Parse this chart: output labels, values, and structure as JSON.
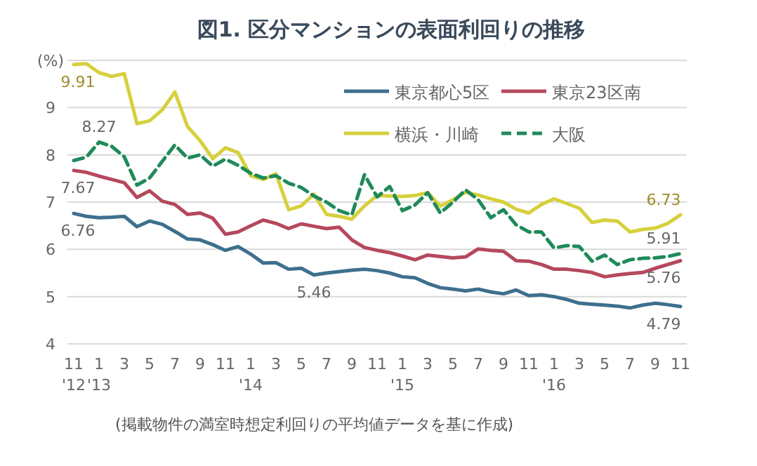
{
  "chart_data": {
    "type": "line",
    "title": "図1. 区分マンションの表面利回りの推移",
    "categories": [
      "11\n'12",
      null,
      "1\n'13",
      null,
      "3",
      null,
      "5",
      null,
      "7",
      null,
      "9",
      null,
      "11",
      null,
      "1\n'14",
      null,
      "3",
      null,
      "5",
      null,
      "7",
      null,
      "9",
      null,
      "11",
      null,
      "1\n'15",
      null,
      "3",
      null,
      "5",
      null,
      "7",
      null,
      "9",
      null,
      "11",
      null,
      "1\n'16",
      null,
      "3",
      null,
      "5",
      null,
      "7",
      null,
      "9",
      null,
      "11"
    ],
    "series": [
      {
        "name": "東京都心5区",
        "color": "#3e6f8e",
        "line_style": "solid",
        "values": [
          6.76,
          6.7,
          6.67,
          6.68,
          6.7,
          6.48,
          6.6,
          6.53,
          6.38,
          6.22,
          6.2,
          6.1,
          5.98,
          6.06,
          5.9,
          5.71,
          5.72,
          5.58,
          5.6,
          5.46,
          5.5,
          5.53,
          5.56,
          5.58,
          5.55,
          5.5,
          5.42,
          5.4,
          5.28,
          5.19,
          5.16,
          5.12,
          5.16,
          5.1,
          5.06,
          5.14,
          5.02,
          5.04,
          5.0,
          4.94,
          4.86,
          4.84,
          4.82,
          4.8,
          4.76,
          4.82,
          4.86,
          4.83,
          4.79
        ],
        "value_labels": [
          "6.76",
          null,
          null,
          null,
          null,
          null,
          null,
          null,
          null,
          null,
          null,
          null,
          null,
          null,
          null,
          null,
          null,
          null,
          null,
          "5.46",
          null,
          null,
          null,
          null,
          null,
          null,
          null,
          null,
          null,
          null,
          null,
          null,
          null,
          null,
          null,
          null,
          null,
          null,
          null,
          null,
          null,
          null,
          null,
          null,
          null,
          null,
          null,
          null,
          "4.79"
        ]
      },
      {
        "name": "東京23区南",
        "color": "#b5485d",
        "line_style": "solid",
        "values": [
          7.67,
          7.63,
          7.55,
          7.48,
          7.41,
          7.1,
          7.24,
          7.02,
          6.95,
          6.74,
          6.77,
          6.66,
          6.32,
          6.37,
          6.5,
          6.62,
          6.55,
          6.44,
          6.54,
          6.49,
          6.44,
          6.47,
          6.2,
          6.04,
          5.98,
          5.93,
          5.86,
          5.78,
          5.88,
          5.85,
          5.82,
          5.84,
          6.01,
          5.98,
          5.96,
          5.76,
          5.75,
          5.68,
          5.58,
          5.58,
          5.55,
          5.51,
          5.42,
          5.46,
          5.49,
          5.51,
          5.6,
          5.68,
          5.76
        ],
        "value_labels": [
          "7.67",
          null,
          null,
          null,
          null,
          null,
          null,
          null,
          null,
          null,
          null,
          null,
          null,
          null,
          null,
          null,
          null,
          null,
          null,
          null,
          null,
          null,
          null,
          null,
          null,
          null,
          null,
          null,
          null,
          null,
          null,
          null,
          null,
          null,
          null,
          null,
          null,
          null,
          null,
          null,
          null,
          null,
          null,
          null,
          null,
          null,
          null,
          null,
          "5.76"
        ]
      },
      {
        "name": "横浜・川崎",
        "color": "#d6d03c",
        "line_style": "solid",
        "values": [
          9.91,
          9.93,
          9.74,
          9.66,
          9.72,
          8.66,
          8.72,
          8.95,
          9.33,
          8.6,
          8.3,
          7.92,
          8.15,
          8.05,
          7.56,
          7.48,
          7.6,
          6.84,
          6.92,
          7.17,
          6.74,
          6.7,
          6.64,
          6.92,
          7.14,
          7.13,
          7.12,
          7.14,
          7.2,
          6.92,
          7.05,
          7.21,
          7.15,
          7.07,
          7.0,
          6.85,
          6.77,
          6.95,
          7.07,
          6.97,
          6.87,
          6.57,
          6.62,
          6.6,
          6.37,
          6.42,
          6.45,
          6.55,
          6.73
        ],
        "value_labels": [
          "9.91",
          null,
          null,
          null,
          null,
          null,
          null,
          null,
          null,
          null,
          null,
          null,
          null,
          null,
          null,
          null,
          null,
          null,
          null,
          null,
          null,
          null,
          null,
          null,
          null,
          null,
          null,
          null,
          null,
          null,
          null,
          null,
          null,
          null,
          null,
          null,
          null,
          null,
          null,
          null,
          null,
          null,
          null,
          null,
          null,
          null,
          null,
          null,
          "6.73"
        ]
      },
      {
        "name": "大阪",
        "color": "#1f8a5a",
        "line_style": "dashed",
        "values": [
          7.88,
          7.95,
          8.27,
          8.18,
          7.96,
          7.36,
          7.51,
          7.86,
          8.21,
          7.93,
          8.0,
          7.76,
          7.91,
          7.78,
          7.61,
          7.51,
          7.56,
          7.4,
          7.31,
          7.13,
          7.0,
          6.82,
          6.73,
          7.58,
          7.11,
          7.33,
          6.82,
          6.94,
          7.2,
          6.77,
          7.0,
          7.26,
          7.05,
          6.67,
          6.84,
          6.52,
          6.37,
          6.37,
          6.03,
          6.08,
          6.06,
          5.75,
          5.88,
          5.68,
          5.78,
          5.81,
          5.82,
          5.85,
          5.91
        ],
        "value_labels": [
          null,
          null,
          "8.27",
          null,
          null,
          null,
          null,
          null,
          null,
          null,
          null,
          null,
          null,
          null,
          null,
          null,
          null,
          null,
          null,
          null,
          null,
          null,
          null,
          null,
          null,
          null,
          null,
          null,
          null,
          null,
          null,
          null,
          null,
          null,
          null,
          null,
          null,
          null,
          null,
          null,
          null,
          null,
          null,
          null,
          null,
          null,
          null,
          null,
          "5.91"
        ]
      }
    ],
    "ylim": [
      4,
      10
    ],
    "yticks": [
      4,
      5,
      6,
      7,
      8,
      9,
      {
        "value": 10,
        "label": "(%)"
      }
    ],
    "grid": "y",
    "legend": "top right",
    "annotations": [
      "(掲載物件の満室時想定利回りの平均値データを基に作成)"
    ]
  }
}
